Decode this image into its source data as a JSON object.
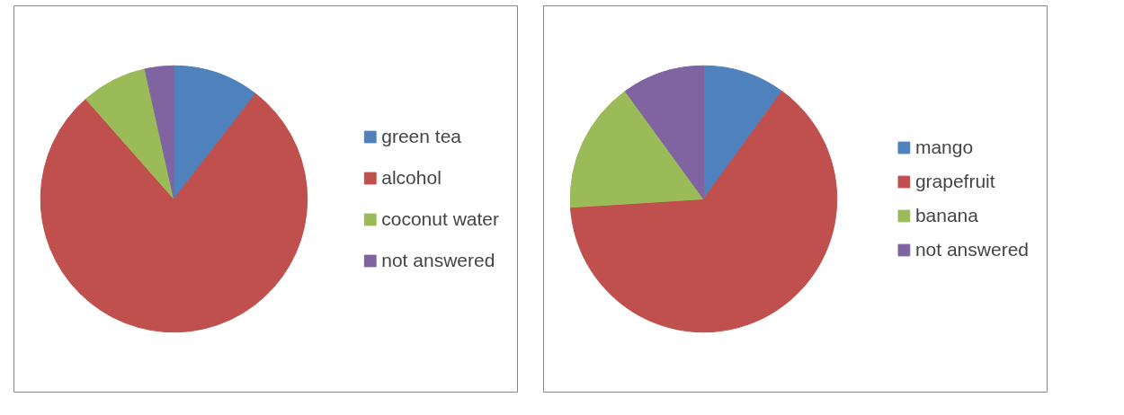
{
  "chart_data": [
    {
      "type": "pie",
      "categories": [
        "green tea",
        "alcohol",
        "coconut water",
        "not answered"
      ],
      "values": [
        10.5,
        78,
        8,
        3.5
      ],
      "colors": [
        "#4f81bd",
        "#c0504d",
        "#9bbb59",
        "#8064a2"
      ],
      "legend": "right"
    },
    {
      "type": "pie",
      "categories": [
        "mango",
        "grapefruit",
        "banana",
        "not answered"
      ],
      "values": [
        10,
        64,
        16,
        10
      ],
      "colors": [
        "#4f81bd",
        "#c0504d",
        "#9bbb59",
        "#8064a2"
      ],
      "legend": "right"
    }
  ]
}
